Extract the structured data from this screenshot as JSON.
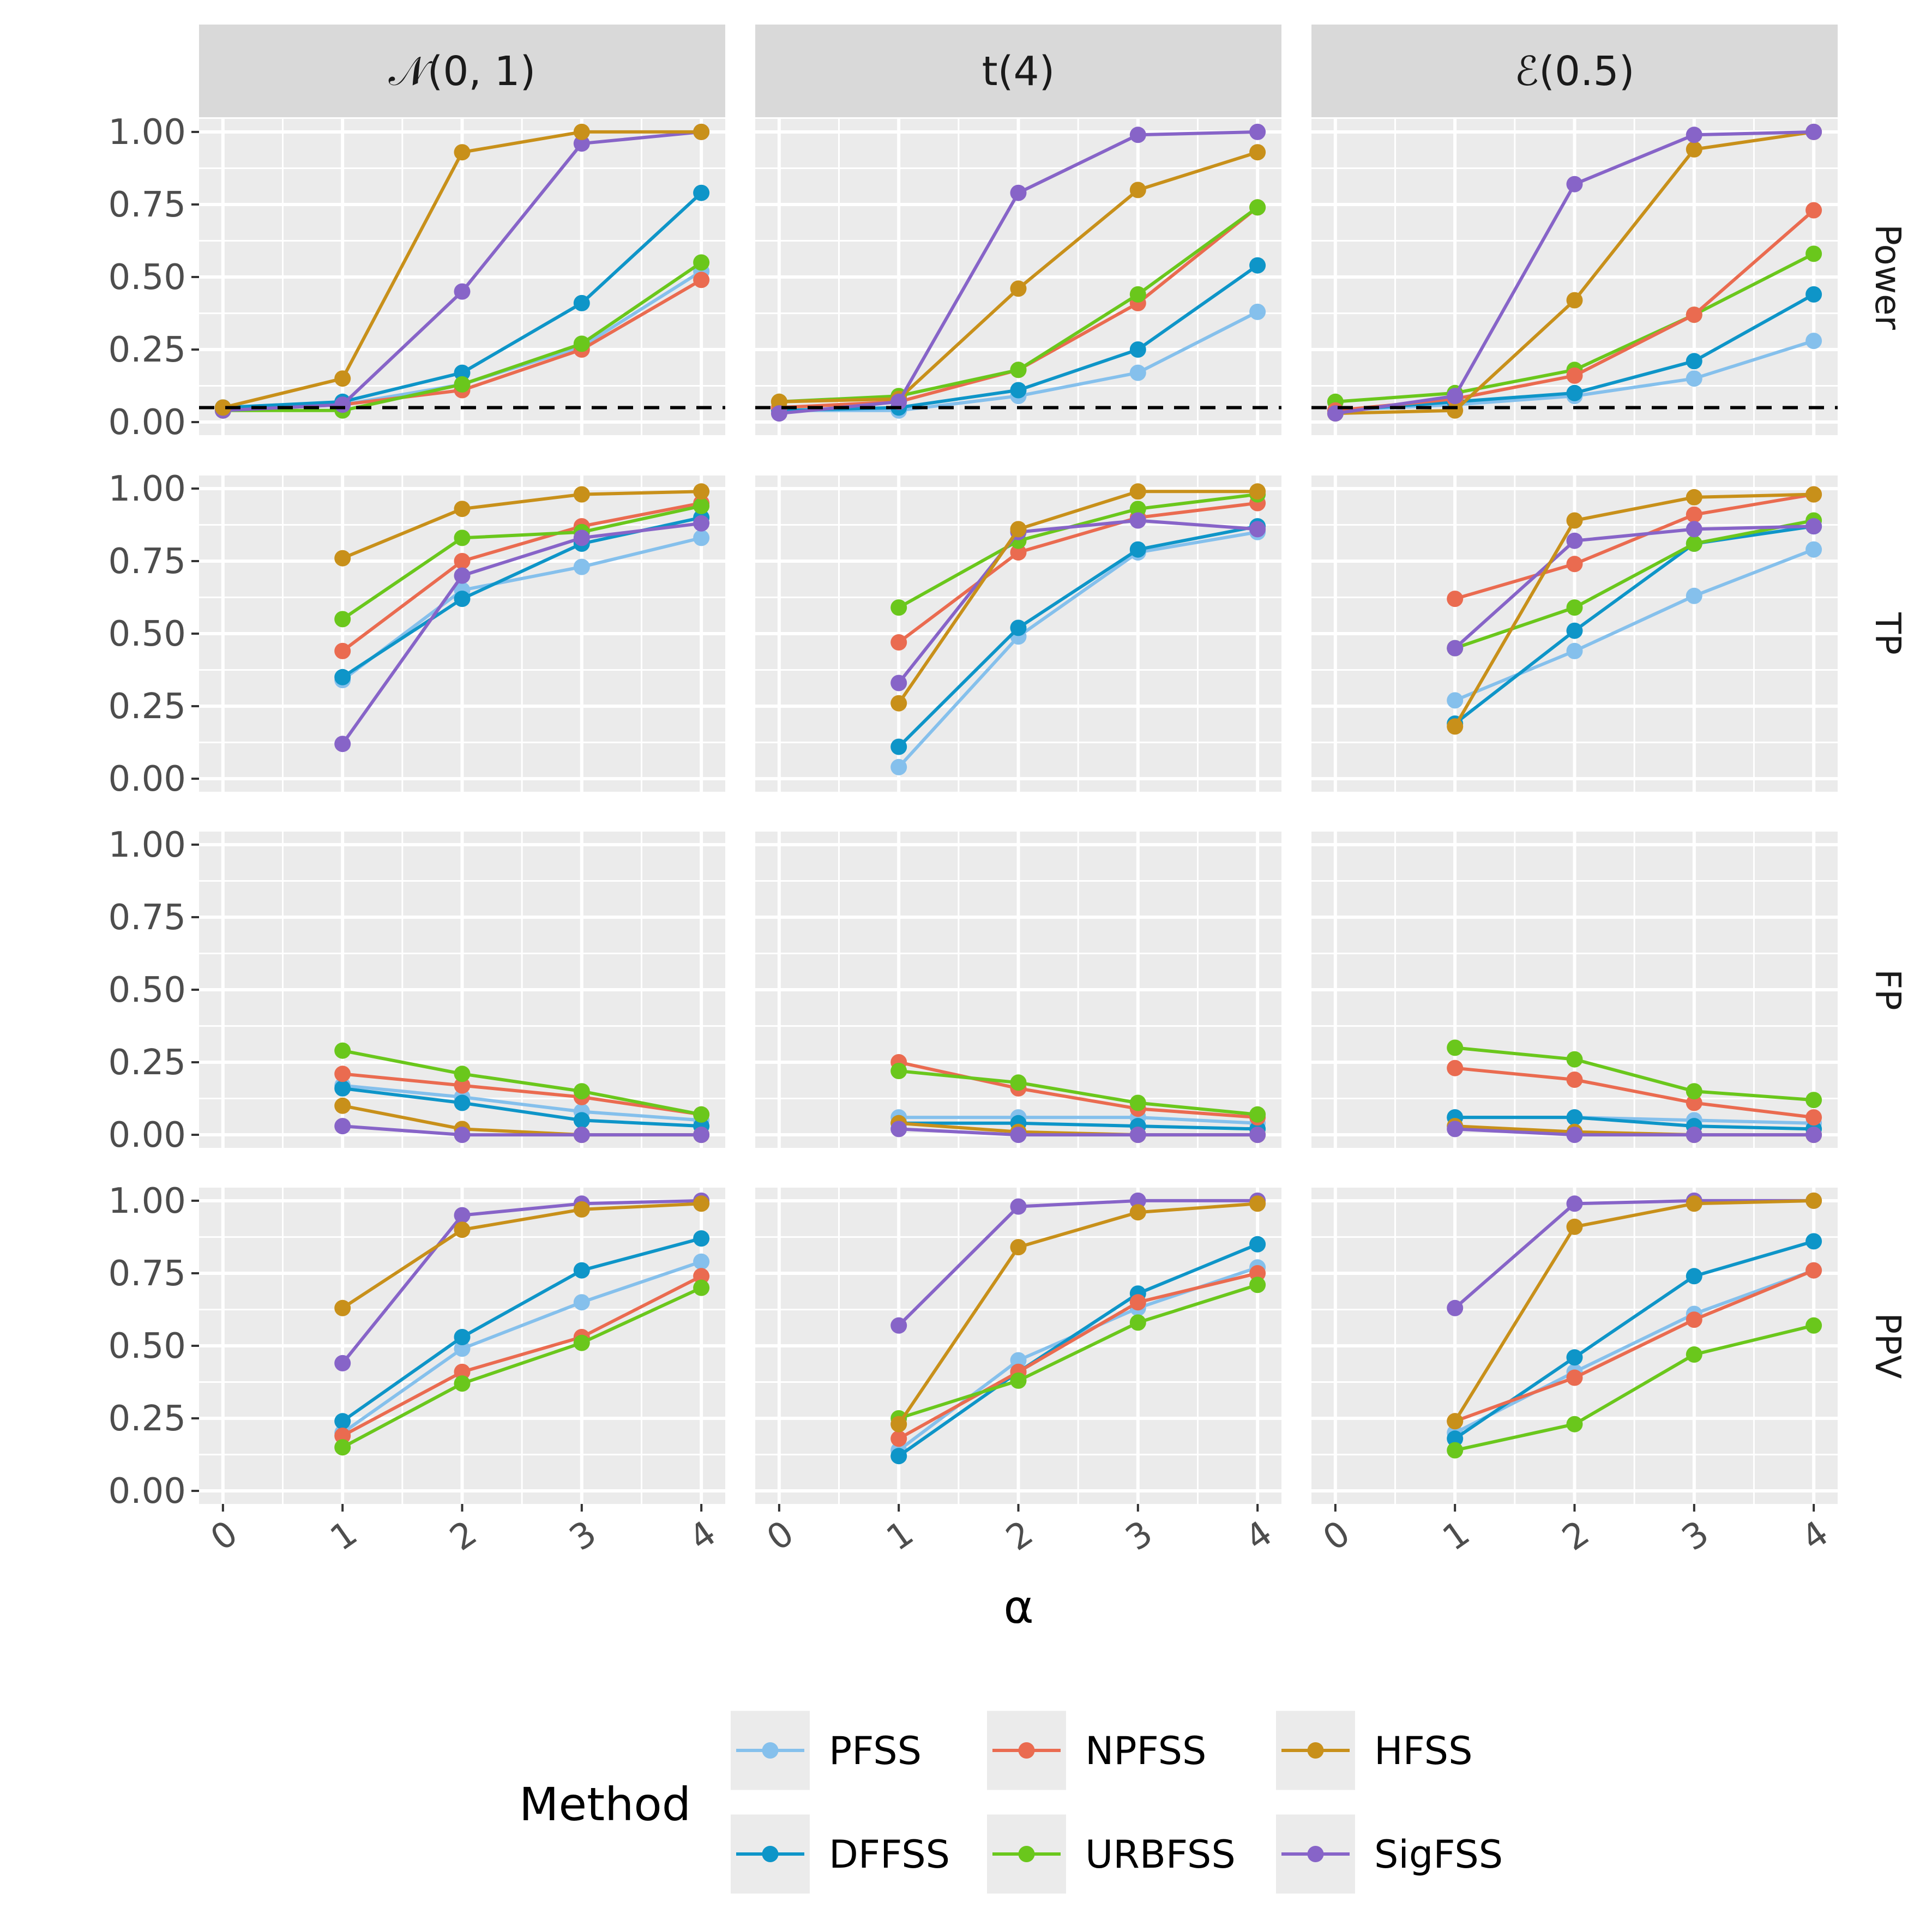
{
  "chart_data": {
    "type": "line",
    "facet_columns": [
      "𝒩(0, 1)",
      "t(4)",
      "ℰ(0.5)"
    ],
    "facet_rows": [
      "Power",
      "TP",
      "FP",
      "PPV"
    ],
    "x": [
      0,
      1,
      2,
      3,
      4
    ],
    "x_ticks": [
      "0",
      "1",
      "2",
      "3",
      "4"
    ],
    "y_ticks": [
      "0.00",
      "0.25",
      "0.50",
      "0.75",
      "1.00"
    ],
    "ylim": [
      0,
      1
    ],
    "xlabel": "α",
    "reference_line": {
      "panel_row": "Power",
      "y": 0.05,
      "style": "dashed"
    },
    "legend": {
      "title": "Method",
      "position": "bottom",
      "entries": [
        {
          "name": "PFSS",
          "color": "#85C0EC"
        },
        {
          "name": "NPFSS",
          "color": "#EA6B50"
        },
        {
          "name": "HFSS",
          "color": "#C8901A"
        },
        {
          "name": "DFFSS",
          "color": "#0E95C8"
        },
        {
          "name": "URBFSS",
          "color": "#6AC71C"
        },
        {
          "name": "SigFSS",
          "color": "#8764C8"
        }
      ]
    },
    "panels": [
      {
        "row": "Power",
        "col": "𝒩(0, 1)",
        "series": [
          {
            "name": "PFSS",
            "values": [
              0.05,
              0.06,
              0.13,
              0.26,
              0.52
            ]
          },
          {
            "name": "NPFSS",
            "values": [
              0.04,
              0.06,
              0.11,
              0.25,
              0.49
            ]
          },
          {
            "name": "DFFSS",
            "values": [
              0.05,
              0.07,
              0.17,
              0.41,
              0.79
            ]
          },
          {
            "name": "URBFSS",
            "values": [
              0.04,
              0.04,
              0.13,
              0.27,
              0.55
            ]
          },
          {
            "name": "SigFSS",
            "values": [
              0.04,
              0.06,
              0.45,
              0.96,
              1.0
            ]
          },
          {
            "name": "HFSS",
            "values": [
              0.05,
              0.15,
              0.93,
              1.0,
              1.0
            ]
          }
        ]
      },
      {
        "row": "Power",
        "col": "t(4)",
        "series": [
          {
            "name": "PFSS",
            "values": [
              0.04,
              0.04,
              0.09,
              0.17,
              0.38
            ]
          },
          {
            "name": "DFFSS",
            "values": [
              0.04,
              0.05,
              0.11,
              0.25,
              0.54
            ]
          },
          {
            "name": "NPFSS",
            "values": [
              0.05,
              0.07,
              0.18,
              0.41,
              0.74
            ]
          },
          {
            "name": "URBFSS",
            "values": [
              0.07,
              0.09,
              0.18,
              0.44,
              0.74
            ]
          },
          {
            "name": "HFSS",
            "values": [
              0.07,
              0.08,
              0.46,
              0.8,
              0.93
            ]
          },
          {
            "name": "SigFSS",
            "values": [
              0.03,
              0.07,
              0.79,
              0.99,
              1.0
            ]
          }
        ]
      },
      {
        "row": "Power",
        "col": "ℰ(0.5)",
        "series": [
          {
            "name": "PFSS",
            "values": [
              0.04,
              0.06,
              0.09,
              0.15,
              0.28
            ]
          },
          {
            "name": "DFFSS",
            "values": [
              0.04,
              0.07,
              0.1,
              0.21,
              0.44
            ]
          },
          {
            "name": "URBFSS",
            "values": [
              0.07,
              0.1,
              0.18,
              0.37,
              0.58
            ]
          },
          {
            "name": "NPFSS",
            "values": [
              0.04,
              0.08,
              0.16,
              0.37,
              0.73
            ]
          },
          {
            "name": "HFSS",
            "values": [
              0.03,
              0.04,
              0.42,
              0.94,
              1.0
            ]
          },
          {
            "name": "SigFSS",
            "values": [
              0.03,
              0.09,
              0.82,
              0.99,
              1.0
            ]
          }
        ]
      },
      {
        "row": "TP",
        "col": "𝒩(0, 1)",
        "series": [
          {
            "name": "PFSS",
            "values": [
              null,
              0.34,
              0.65,
              0.73,
              0.83
            ]
          },
          {
            "name": "DFFSS",
            "values": [
              null,
              0.35,
              0.62,
              0.81,
              0.9
            ]
          },
          {
            "name": "NPFSS",
            "values": [
              null,
              0.44,
              0.75,
              0.87,
              0.95
            ]
          },
          {
            "name": "URBFSS",
            "values": [
              null,
              0.55,
              0.83,
              0.85,
              0.94
            ]
          },
          {
            "name": "SigFSS",
            "values": [
              null,
              0.12,
              0.7,
              0.83,
              0.88
            ]
          },
          {
            "name": "HFSS",
            "values": [
              null,
              0.76,
              0.93,
              0.98,
              0.99
            ]
          }
        ]
      },
      {
        "row": "TP",
        "col": "t(4)",
        "series": [
          {
            "name": "PFSS",
            "values": [
              null,
              0.04,
              0.49,
              0.78,
              0.85
            ]
          },
          {
            "name": "DFFSS",
            "values": [
              null,
              0.11,
              0.52,
              0.79,
              0.87
            ]
          },
          {
            "name": "NPFSS",
            "values": [
              null,
              0.47,
              0.78,
              0.9,
              0.95
            ]
          },
          {
            "name": "URBFSS",
            "values": [
              null,
              0.59,
              0.82,
              0.93,
              0.98
            ]
          },
          {
            "name": "SigFSS",
            "values": [
              null,
              0.33,
              0.85,
              0.89,
              0.86
            ]
          },
          {
            "name": "HFSS",
            "values": [
              null,
              0.26,
              0.86,
              0.99,
              0.99
            ]
          }
        ]
      },
      {
        "row": "TP",
        "col": "ℰ(0.5)",
        "series": [
          {
            "name": "PFSS",
            "values": [
              null,
              0.27,
              0.44,
              0.63,
              0.79
            ]
          },
          {
            "name": "DFFSS",
            "values": [
              null,
              0.19,
              0.51,
              0.81,
              0.87
            ]
          },
          {
            "name": "NPFSS",
            "values": [
              null,
              0.62,
              0.74,
              0.91,
              0.98
            ]
          },
          {
            "name": "URBFSS",
            "values": [
              null,
              0.45,
              0.59,
              0.81,
              0.89
            ]
          },
          {
            "name": "SigFSS",
            "values": [
              null,
              0.45,
              0.82,
              0.86,
              0.87
            ]
          },
          {
            "name": "HFSS",
            "values": [
              null,
              0.18,
              0.89,
              0.97,
              0.98
            ]
          }
        ]
      },
      {
        "row": "FP",
        "col": "𝒩(0, 1)",
        "series": [
          {
            "name": "PFSS",
            "values": [
              null,
              0.17,
              0.13,
              0.08,
              0.05
            ]
          },
          {
            "name": "DFFSS",
            "values": [
              null,
              0.16,
              0.11,
              0.05,
              0.03
            ]
          },
          {
            "name": "NPFSS",
            "values": [
              null,
              0.21,
              0.17,
              0.13,
              0.07
            ]
          },
          {
            "name": "URBFSS",
            "values": [
              null,
              0.29,
              0.21,
              0.15,
              0.07
            ]
          },
          {
            "name": "HFSS",
            "values": [
              null,
              0.1,
              0.02,
              0.0,
              0.0
            ]
          },
          {
            "name": "SigFSS",
            "values": [
              null,
              0.03,
              0.0,
              0.0,
              0.0
            ]
          }
        ]
      },
      {
        "row": "FP",
        "col": "t(4)",
        "series": [
          {
            "name": "PFSS",
            "values": [
              null,
              0.06,
              0.06,
              0.06,
              0.04
            ]
          },
          {
            "name": "DFFSS",
            "values": [
              null,
              0.04,
              0.04,
              0.03,
              0.02
            ]
          },
          {
            "name": "NPFSS",
            "values": [
              null,
              0.25,
              0.16,
              0.09,
              0.06
            ]
          },
          {
            "name": "URBFSS",
            "values": [
              null,
              0.22,
              0.18,
              0.11,
              0.07
            ]
          },
          {
            "name": "HFSS",
            "values": [
              null,
              0.04,
              0.01,
              0.0,
              0.0
            ]
          },
          {
            "name": "SigFSS",
            "values": [
              null,
              0.02,
              0.0,
              0.0,
              0.0
            ]
          }
        ]
      },
      {
        "row": "FP",
        "col": "ℰ(0.5)",
        "series": [
          {
            "name": "PFSS",
            "values": [
              null,
              0.06,
              0.06,
              0.05,
              0.04
            ]
          },
          {
            "name": "DFFSS",
            "values": [
              null,
              0.06,
              0.06,
              0.03,
              0.02
            ]
          },
          {
            "name": "NPFSS",
            "values": [
              null,
              0.23,
              0.19,
              0.11,
              0.06
            ]
          },
          {
            "name": "URBFSS",
            "values": [
              null,
              0.3,
              0.26,
              0.15,
              0.12
            ]
          },
          {
            "name": "HFSS",
            "values": [
              null,
              0.03,
              0.01,
              0.0,
              0.0
            ]
          },
          {
            "name": "SigFSS",
            "values": [
              null,
              0.02,
              0.0,
              0.0,
              0.0
            ]
          }
        ]
      },
      {
        "row": "PPV",
        "col": "𝒩(0, 1)",
        "series": [
          {
            "name": "PFSS",
            "values": [
              null,
              0.2,
              0.49,
              0.65,
              0.79
            ]
          },
          {
            "name": "DFFSS",
            "values": [
              null,
              0.24,
              0.53,
              0.76,
              0.87
            ]
          },
          {
            "name": "NPFSS",
            "values": [
              null,
              0.19,
              0.41,
              0.53,
              0.74
            ]
          },
          {
            "name": "URBFSS",
            "values": [
              null,
              0.15,
              0.37,
              0.51,
              0.7
            ]
          },
          {
            "name": "SigFSS",
            "values": [
              null,
              0.44,
              0.95,
              0.99,
              1.0
            ]
          },
          {
            "name": "HFSS",
            "values": [
              null,
              0.63,
              0.9,
              0.97,
              0.99
            ]
          }
        ]
      },
      {
        "row": "PPV",
        "col": "t(4)",
        "series": [
          {
            "name": "PFSS",
            "values": [
              null,
              0.14,
              0.45,
              0.63,
              0.77
            ]
          },
          {
            "name": "DFFSS",
            "values": [
              null,
              0.12,
              0.41,
              0.68,
              0.85
            ]
          },
          {
            "name": "NPFSS",
            "values": [
              null,
              0.18,
              0.41,
              0.65,
              0.75
            ]
          },
          {
            "name": "URBFSS",
            "values": [
              null,
              0.25,
              0.38,
              0.58,
              0.71
            ]
          },
          {
            "name": "SigFSS",
            "values": [
              null,
              0.57,
              0.98,
              1.0,
              1.0
            ]
          },
          {
            "name": "HFSS",
            "values": [
              null,
              0.23,
              0.84,
              0.96,
              0.99
            ]
          }
        ]
      },
      {
        "row": "PPV",
        "col": "ℰ(0.5)",
        "series": [
          {
            "name": "PFSS",
            "values": [
              null,
              0.2,
              0.41,
              0.61,
              0.76
            ]
          },
          {
            "name": "DFFSS",
            "values": [
              null,
              0.18,
              0.46,
              0.74,
              0.86
            ]
          },
          {
            "name": "NPFSS",
            "values": [
              null,
              0.24,
              0.39,
              0.59,
              0.76
            ]
          },
          {
            "name": "URBFSS",
            "values": [
              null,
              0.14,
              0.23,
              0.47,
              0.57
            ]
          },
          {
            "name": "SigFSS",
            "values": [
              null,
              0.63,
              0.99,
              1.0,
              1.0
            ]
          },
          {
            "name": "HFSS",
            "values": [
              null,
              0.24,
              0.91,
              0.99,
              1.0
            ]
          }
        ]
      }
    ]
  }
}
